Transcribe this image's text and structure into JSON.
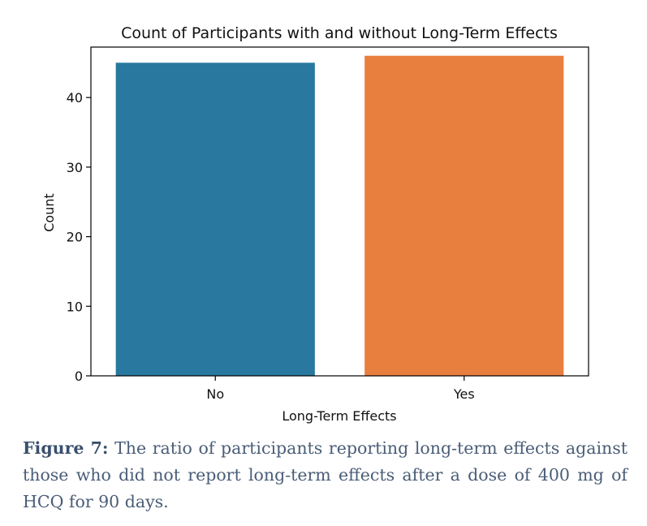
{
  "chart_data": {
    "type": "bar",
    "title": "Count of Participants with and without Long-Term Effects",
    "xlabel": "Long-Term Effects",
    "ylabel": "Count",
    "categories": [
      "No",
      "Yes"
    ],
    "values": [
      45,
      46
    ],
    "colors": [
      "#2878a0",
      "#e87f3f"
    ],
    "ylim": [
      0,
      47.25
    ],
    "yticks": [
      0,
      10,
      20,
      30,
      40
    ],
    "grid": false
  },
  "caption": {
    "label": "Figure 7:",
    "text": " The ratio of participants reporting long-term effects against those who did not report long-term effects after a dose of 400 mg of HCQ for 90 days."
  }
}
